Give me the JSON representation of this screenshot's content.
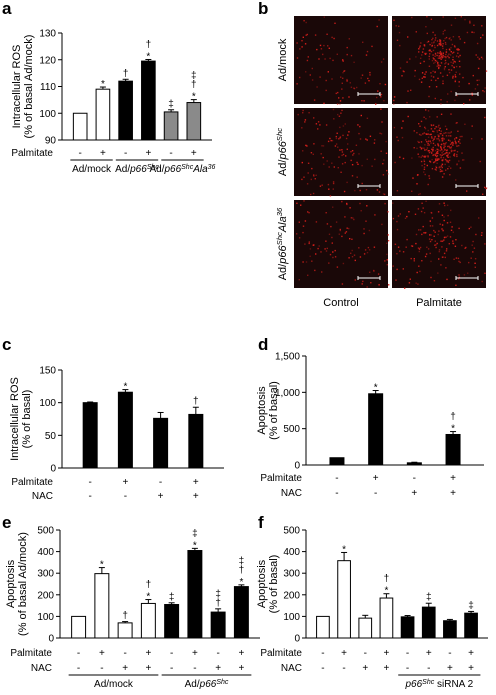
{
  "colors": {
    "black_bar": "#000000",
    "white_bar": "#ffffff",
    "grey_bar": "#8a8a8a",
    "micrograph_bg": "#1a0808",
    "signal": "#e0201c",
    "scale_bar": "#ffffff"
  },
  "chart_data": [
    {
      "panel": "a",
      "type": "bar",
      "ylabel": "Intracellular ROS (% of basal Ad/mock)",
      "ylim": [
        90,
        130
      ],
      "yticks": [
        90,
        100,
        110,
        120,
        130
      ],
      "categories": [
        "Ad/mock -",
        "Ad/mock +",
        "Ad/p66Shc -",
        "Ad/p66Shc +",
        "Ad/p66ShcAla36 -",
        "Ad/p66ShcAla36 +"
      ],
      "values": [
        100,
        109,
        112,
        119.5,
        100.5,
        104
      ],
      "errors": [
        0,
        0.8,
        0.7,
        0.6,
        0.8,
        1.1
      ],
      "fills": [
        "white",
        "white",
        "black",
        "black",
        "grey",
        "grey"
      ],
      "sig": [
        "",
        "*",
        "†",
        "*,†",
        "‡",
        "*,†,‡"
      ],
      "rows": [
        {
          "label": "Palmitate",
          "values": [
            "-",
            "+",
            "-",
            "+",
            "-",
            "+"
          ]
        }
      ],
      "groups": [
        {
          "parts": [
            [
              "Ad/mock",
              ""
            ]
          ],
          "span": [
            0,
            1
          ]
        },
        {
          "parts": [
            [
              "Ad/",
              ""
            ],
            [
              "p66",
              "i"
            ],
            [
              "Shc",
              "is"
            ]
          ],
          "span": [
            2,
            3
          ]
        },
        {
          "parts": [
            [
              "Ad/",
              ""
            ],
            [
              "p66",
              "i"
            ],
            [
              "Shc",
              "is"
            ],
            [
              "Ala",
              "i"
            ],
            [
              "36",
              "is"
            ]
          ],
          "span": [
            4,
            5
          ]
        }
      ]
    },
    {
      "panel": "c",
      "type": "bar",
      "ylabel": "Intracellular ROS (% of basal)",
      "ylim": [
        0,
        150
      ],
      "yticks": [
        0,
        50,
        100,
        150
      ],
      "categories": [
        "1",
        "2",
        "3",
        "4"
      ],
      "values": [
        100,
        116,
        76,
        82
      ],
      "errors": [
        1,
        4,
        9,
        11
      ],
      "fills": [
        "black",
        "black",
        "black",
        "black"
      ],
      "sig": [
        "",
        "*",
        "",
        "†"
      ],
      "rows": [
        {
          "label": "Palmitate",
          "values": [
            "-",
            "+",
            "-",
            "+"
          ]
        },
        {
          "label": "NAC",
          "values": [
            "-",
            "-",
            "+",
            "+"
          ]
        }
      ]
    },
    {
      "panel": "d",
      "type": "bar",
      "ylabel": "Apoptosis (% of basal)",
      "ylim": [
        0,
        1500
      ],
      "yticks": [
        0,
        500,
        1000,
        1500
      ],
      "yticklabels": [
        "0",
        "500",
        "1,000",
        "1,500"
      ],
      "categories": [
        "1",
        "2",
        "3",
        "4"
      ],
      "values": [
        100,
        980,
        30,
        420
      ],
      "errors": [
        0,
        45,
        8,
        40
      ],
      "fills": [
        "black",
        "black",
        "black",
        "black"
      ],
      "sig": [
        "",
        "*",
        "",
        "*,†"
      ],
      "rows": [
        {
          "label": "Palmitate",
          "values": [
            "-",
            "+",
            "-",
            "+"
          ]
        },
        {
          "label": "NAC",
          "values": [
            "-",
            "-",
            "+",
            "+"
          ]
        }
      ]
    },
    {
      "panel": "e",
      "type": "bar",
      "ylabel": "Apoptosis (% of basal Ad/mock)",
      "ylim": [
        0,
        500
      ],
      "yticks": [
        0,
        100,
        200,
        300,
        400,
        500
      ],
      "categories": [
        "1",
        "2",
        "3",
        "4",
        "5",
        "6",
        "7",
        "8"
      ],
      "values": [
        100,
        298,
        70,
        160,
        155,
        405,
        120,
        238
      ],
      "errors": [
        0,
        28,
        6,
        18,
        8,
        10,
        15,
        8
      ],
      "fills": [
        "white",
        "white",
        "white",
        "white",
        "black",
        "black",
        "black",
        "black"
      ],
      "sig": [
        "",
        "*",
        "†",
        "*,†",
        "‡",
        "*,‡",
        "†,‡",
        "*,†,‡"
      ],
      "rows": [
        {
          "label": "Palmitate",
          "values": [
            "-",
            "+",
            "-",
            "+",
            "-",
            "+",
            "-",
            "+"
          ]
        },
        {
          "label": "NAC",
          "values": [
            "-",
            "-",
            "+",
            "+",
            "-",
            "-",
            "+",
            "+"
          ]
        }
      ],
      "groups": [
        {
          "parts": [
            [
              "Ad/mock",
              ""
            ]
          ],
          "span": [
            0,
            3
          ]
        },
        {
          "parts": [
            [
              "Ad/",
              ""
            ],
            [
              "p66",
              "i"
            ],
            [
              "Shc",
              "is"
            ]
          ],
          "span": [
            4,
            7
          ]
        }
      ]
    },
    {
      "panel": "f",
      "type": "bar",
      "ylabel": "Apoptosis (% of basal)",
      "ylim": [
        0,
        500
      ],
      "yticks": [
        0,
        100,
        200,
        300,
        400,
        500
      ],
      "categories": [
        "1",
        "2",
        "3",
        "4",
        "5",
        "6",
        "7",
        "8"
      ],
      "values": [
        100,
        358,
        92,
        185,
        98,
        143,
        80,
        115
      ],
      "errors": [
        0,
        38,
        13,
        20,
        6,
        18,
        6,
        8
      ],
      "fills": [
        "white",
        "white",
        "white",
        "white",
        "black",
        "black",
        "black",
        "black"
      ],
      "sig": [
        "",
        "*",
        "",
        "*,†",
        "",
        "‡",
        "",
        "‡"
      ],
      "rows": [
        {
          "label": "Palmitate",
          "values": [
            "-",
            "+",
            "-",
            "+",
            "-",
            "+",
            "-",
            "+"
          ]
        },
        {
          "label": "NAC",
          "values": [
            "-",
            "-",
            "+",
            "+",
            "-",
            "-",
            "+",
            "+"
          ]
        }
      ],
      "groups": [
        {
          "parts": [
            [
              "p66",
              "i"
            ],
            [
              "Shc",
              "is"
            ],
            [
              " siRNA 2",
              ""
            ]
          ],
          "span": [
            4,
            7
          ]
        }
      ]
    }
  ],
  "micrographs": {
    "panel": "b",
    "row_labels": [
      [
        [
          "Ad/mock",
          ""
        ]
      ],
      [
        [
          "Ad/",
          ""
        ],
        [
          "p66",
          "i"
        ],
        [
          "Shc",
          "is"
        ]
      ],
      [
        [
          "Ad/",
          ""
        ],
        [
          "p66",
          "i"
        ],
        [
          "Shc",
          "is"
        ],
        [
          "Ala",
          "i"
        ],
        [
          "36",
          "is"
        ]
      ]
    ],
    "col_labels": [
      "Control",
      "Palmitate"
    ],
    "signal_level": [
      [
        0.15,
        0.85
      ],
      [
        0.3,
        1.0
      ],
      [
        0.2,
        0.4
      ]
    ]
  }
}
